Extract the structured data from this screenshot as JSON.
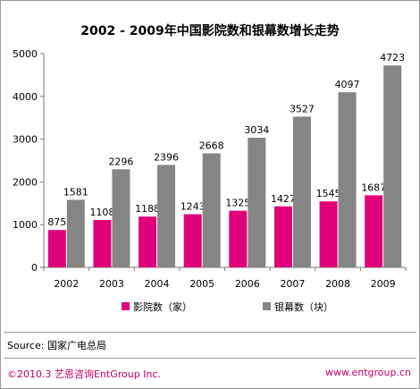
{
  "chart_data": {
    "type": "bar",
    "title": "2002 - 2009年中国影院数和银幕数增长走势",
    "categories": [
      "2002",
      "2003",
      "2004",
      "2005",
      "2006",
      "2007",
      "2008",
      "2009"
    ],
    "series": [
      {
        "name": "影院数（家）",
        "color": "#e0007a",
        "values": [
          875,
          1108,
          1188,
          1243,
          1325,
          1427,
          1545,
          1687
        ]
      },
      {
        "name": "银幕数（块）",
        "color": "#858585",
        "values": [
          1581,
          2296,
          2396,
          2668,
          3034,
          3527,
          4097,
          4723
        ]
      }
    ],
    "ylim": [
      0,
      5000
    ],
    "yticks": [
      0,
      1000,
      2000,
      3000,
      4000,
      5000
    ],
    "grid": false,
    "legend": "bottom"
  },
  "source": "Source: 国家广电总局",
  "footer": {
    "copyright": "©2010.3 艺恩咨询EntGroup Inc.",
    "website": "www.entgroup.cn"
  }
}
